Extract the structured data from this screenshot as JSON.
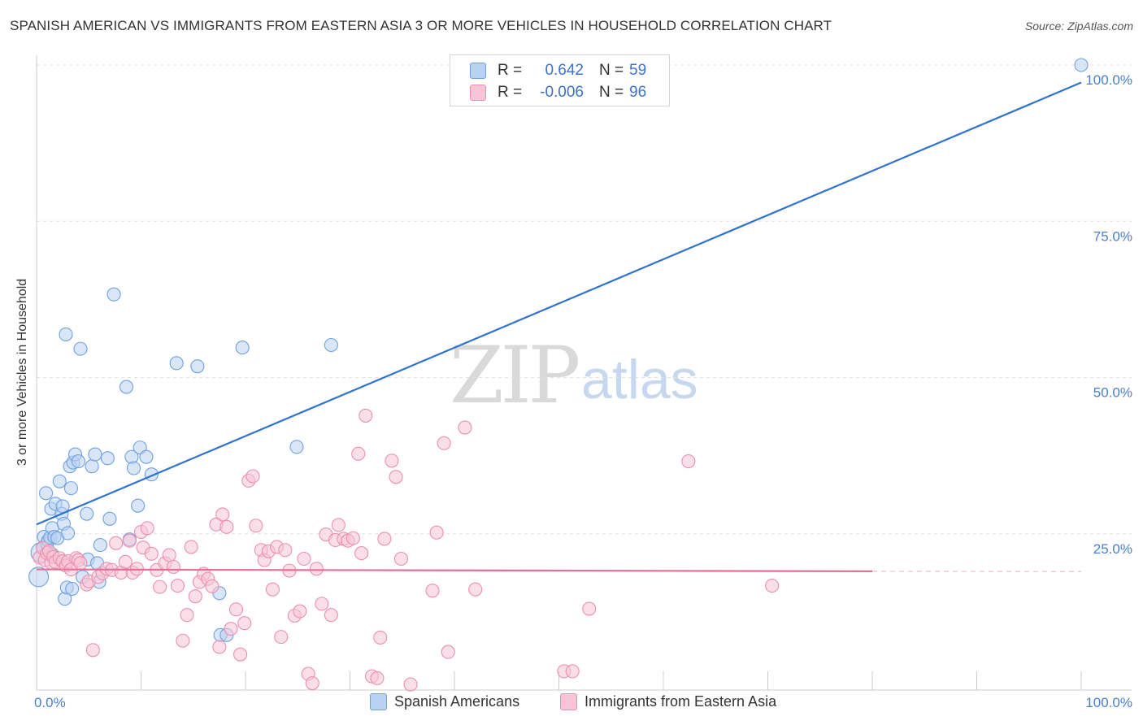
{
  "title": "SPANISH AMERICAN VS IMMIGRANTS FROM EASTERN ASIA 3 OR MORE VEHICLES IN HOUSEHOLD CORRELATION CHART",
  "source": "Source: ZipAtlas.com",
  "watermark": {
    "zip": "ZIP",
    "atlas": "atlas"
  },
  "legend": {
    "rows": [
      {
        "r_label": "R =",
        "r_value": "0.642",
        "n_label": "N =",
        "n_value": "59",
        "color": "#6fa0e0",
        "fill": "#b9d1f3"
      },
      {
        "r_label": "R =",
        "r_value": "-0.006",
        "n_label": "N =",
        "n_value": "96",
        "color": "#ec8fae",
        "fill": "#f7c5d5"
      }
    ]
  },
  "bottom_legend": [
    {
      "label": "Spanish Americans"
    },
    {
      "label": "Immigrants from Eastern Asia"
    }
  ],
  "chart_data": {
    "type": "scatter",
    "title": "SPANISH AMERICAN VS IMMIGRANTS FROM EASTERN ASIA 3 OR MORE VEHICLES IN HOUSEHOLD CORRELATION CHART",
    "xlabel": "",
    "ylabel": "3 or more Vehicles in Household",
    "xlim": [
      0,
      100
    ],
    "ylim": [
      0,
      100
    ],
    "x_tick_labels": [
      "0.0%",
      "100.0%"
    ],
    "y_tick_labels": [
      "25.0%",
      "50.0%",
      "75.0%",
      "100.0%"
    ],
    "y_ticks": [
      25,
      50,
      75,
      100
    ],
    "grid": true,
    "series": [
      {
        "name": "Spanish Americans",
        "color": "#6fa0e0",
        "fill": "#b9d1f3",
        "line_color": "#2f72d0",
        "trend": {
          "x": [
            0,
            100
          ],
          "y": [
            26.5,
            97.2
          ]
        },
        "points": [
          [
            0.2,
            18.1
          ],
          [
            0.4,
            22.0
          ],
          [
            0.6,
            22.8
          ],
          [
            0.7,
            24.5
          ],
          [
            0.9,
            31.5
          ],
          [
            1.0,
            23.4
          ],
          [
            1.1,
            23.9
          ],
          [
            1.3,
            24.4
          ],
          [
            1.4,
            29.0
          ],
          [
            1.5,
            25.9
          ],
          [
            1.5,
            21.7
          ],
          [
            1.7,
            24.5
          ],
          [
            1.8,
            29.8
          ],
          [
            2.0,
            24.3
          ],
          [
            2.2,
            33.4
          ],
          [
            2.4,
            28.2
          ],
          [
            2.5,
            29.4
          ],
          [
            2.6,
            26.6
          ],
          [
            2.7,
            14.6
          ],
          [
            2.8,
            56.9
          ],
          [
            2.9,
            16.4
          ],
          [
            3.0,
            25.1
          ],
          [
            3.2,
            35.8
          ],
          [
            3.3,
            32.3
          ],
          [
            3.4,
            16.2
          ],
          [
            3.5,
            36.4
          ],
          [
            3.7,
            37.7
          ],
          [
            4.0,
            36.6
          ],
          [
            4.2,
            54.6
          ],
          [
            4.4,
            18.1
          ],
          [
            4.8,
            28.2
          ],
          [
            4.9,
            20.9
          ],
          [
            5.3,
            35.8
          ],
          [
            5.6,
            37.7
          ],
          [
            5.8,
            20.3
          ],
          [
            6.0,
            17.3
          ],
          [
            6.1,
            23.2
          ],
          [
            6.8,
            37.1
          ],
          [
            7.0,
            27.4
          ],
          [
            7.4,
            63.3
          ],
          [
            8.6,
            48.5
          ],
          [
            8.9,
            24.1
          ],
          [
            9.1,
            37.3
          ],
          [
            9.3,
            35.5
          ],
          [
            9.7,
            29.5
          ],
          [
            9.9,
            38.8
          ],
          [
            10.5,
            37.3
          ],
          [
            11.0,
            34.5
          ],
          [
            13.4,
            52.3
          ],
          [
            15.4,
            51.8
          ],
          [
            17.5,
            15.5
          ],
          [
            17.6,
            8.8
          ],
          [
            18.2,
            8.8
          ],
          [
            19.7,
            54.8
          ],
          [
            24.9,
            38.9
          ],
          [
            28.2,
            55.2
          ],
          [
            100.0,
            100.0
          ]
        ]
      },
      {
        "name": "Immigrants from Eastern Asia",
        "color": "#ec8fae",
        "fill": "#f7c5d5",
        "line_color": "#e66f9a",
        "trend": {
          "x": [
            0,
            80
          ],
          "y": [
            19.3,
            19.0
          ]
        },
        "points": [
          [
            0.3,
            21.2
          ],
          [
            0.6,
            22.7
          ],
          [
            0.8,
            20.8
          ],
          [
            1.0,
            21.9
          ],
          [
            1.2,
            22.2
          ],
          [
            1.4,
            20.4
          ],
          [
            1.6,
            21.3
          ],
          [
            1.8,
            20.5
          ],
          [
            2.2,
            21.1
          ],
          [
            2.5,
            20.6
          ],
          [
            2.8,
            19.9
          ],
          [
            3.0,
            20.6
          ],
          [
            3.3,
            19.3
          ],
          [
            3.8,
            21.1
          ],
          [
            4.0,
            20.8
          ],
          [
            4.2,
            20.3
          ],
          [
            4.8,
            16.9
          ],
          [
            5.0,
            17.4
          ],
          [
            5.4,
            6.4
          ],
          [
            5.9,
            18.1
          ],
          [
            6.3,
            18.7
          ],
          [
            6.7,
            19.4
          ],
          [
            7.2,
            19.2
          ],
          [
            7.6,
            23.5
          ],
          [
            8.1,
            18.8
          ],
          [
            8.5,
            20.5
          ],
          [
            8.9,
            23.9
          ],
          [
            9.2,
            18.8
          ],
          [
            9.6,
            19.4
          ],
          [
            10.0,
            25.3
          ],
          [
            10.2,
            22.8
          ],
          [
            10.6,
            25.9
          ],
          [
            11.0,
            21.8
          ],
          [
            11.5,
            19.2
          ],
          [
            11.8,
            16.5
          ],
          [
            12.3,
            20.3
          ],
          [
            12.7,
            21.6
          ],
          [
            13.1,
            19.7
          ],
          [
            13.5,
            16.7
          ],
          [
            14.0,
            7.9
          ],
          [
            14.4,
            12.0
          ],
          [
            14.8,
            22.9
          ],
          [
            15.2,
            15.0
          ],
          [
            15.6,
            17.3
          ],
          [
            16.0,
            18.6
          ],
          [
            16.4,
            17.8
          ],
          [
            16.8,
            16.6
          ],
          [
            17.2,
            26.5
          ],
          [
            17.5,
            6.9
          ],
          [
            17.8,
            28.1
          ],
          [
            18.2,
            26.1
          ],
          [
            18.6,
            9.8
          ],
          [
            19.1,
            12.9
          ],
          [
            19.5,
            5.7
          ],
          [
            19.9,
            10.7
          ],
          [
            20.3,
            33.5
          ],
          [
            20.7,
            34.2
          ],
          [
            21.0,
            26.3
          ],
          [
            21.5,
            22.4
          ],
          [
            21.8,
            20.8
          ],
          [
            22.2,
            22.2
          ],
          [
            22.6,
            16.1
          ],
          [
            23.0,
            22.9
          ],
          [
            23.4,
            8.5
          ],
          [
            23.8,
            22.4
          ],
          [
            24.2,
            19.1
          ],
          [
            24.7,
            11.9
          ],
          [
            25.2,
            12.6
          ],
          [
            25.6,
            21.0
          ],
          [
            26.0,
            2.6
          ],
          [
            26.4,
            1.1
          ],
          [
            26.8,
            19.4
          ],
          [
            27.3,
            13.8
          ],
          [
            27.7,
            24.9
          ],
          [
            28.2,
            12.0
          ],
          [
            28.6,
            24.0
          ],
          [
            28.9,
            26.4
          ],
          [
            29.4,
            24.2
          ],
          [
            29.8,
            23.9
          ],
          [
            30.3,
            24.3
          ],
          [
            30.8,
            37.8
          ],
          [
            31.1,
            21.9
          ],
          [
            31.5,
            43.9
          ],
          [
            32.1,
            2.2
          ],
          [
            32.6,
            1.9
          ],
          [
            32.9,
            8.4
          ],
          [
            33.3,
            24.2
          ],
          [
            34.0,
            36.7
          ],
          [
            34.4,
            34.1
          ],
          [
            34.9,
            21.0
          ],
          [
            35.8,
            0.9
          ],
          [
            37.9,
            15.9
          ],
          [
            38.3,
            25.2
          ],
          [
            39.0,
            39.5
          ],
          [
            39.4,
            6.1
          ],
          [
            41.0,
            42.0
          ],
          [
            42.0,
            16.1
          ],
          [
            50.5,
            3.0
          ],
          [
            51.3,
            3.0
          ],
          [
            52.9,
            13.0
          ],
          [
            62.4,
            36.6
          ],
          [
            70.4,
            16.7
          ]
        ]
      }
    ]
  }
}
